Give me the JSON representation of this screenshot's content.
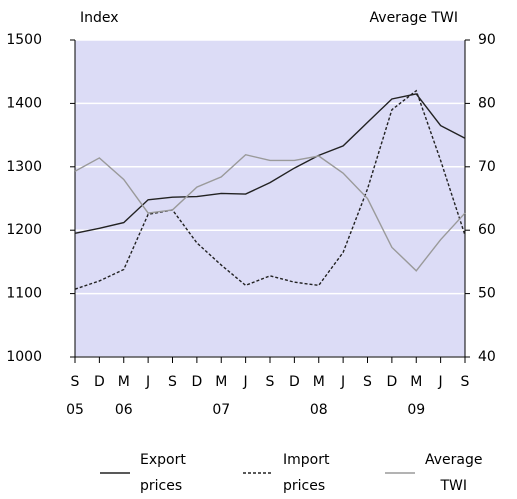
{
  "chart_data": {
    "type": "line",
    "y_label": "Index",
    "y2_label": "Average TWI",
    "categories": [
      "S",
      "D",
      "M",
      "J",
      "S",
      "D",
      "M",
      "J",
      "S",
      "D",
      "M",
      "J",
      "S",
      "D",
      "M",
      "J",
      "S"
    ],
    "category_years": [
      "05",
      null,
      "06",
      null,
      null,
      null,
      "07",
      null,
      null,
      null,
      "08",
      null,
      null,
      null,
      "09",
      null,
      null
    ],
    "series": [
      {
        "name": "Export prices",
        "color": "#222222",
        "dash": "none",
        "values": [
          1195,
          1203,
          1212,
          1248,
          1252,
          1253,
          1258,
          1257,
          1275,
          1298,
          1318,
          1333,
          1370,
          1407,
          1415,
          1365,
          1345
        ]
      },
      {
        "name": "Import prices",
        "color": "#222222",
        "dash": "3,2",
        "values": [
          1107,
          1120,
          1138,
          1225,
          1232,
          1180,
          1145,
          1113,
          1128,
          1118,
          1113,
          1165,
          1265,
          1390,
          1420,
          1310,
          1192
        ]
      },
      {
        "name": "Average TWI",
        "color": "#9a9a9a",
        "dash": "none",
        "axis": "y2",
        "values": [
          69.3,
          71.4,
          68,
          62.7,
          63.2,
          66.8,
          68.4,
          71.9,
          71,
          71,
          71.7,
          69,
          65,
          57.3,
          53.6,
          58.5,
          62.7
        ]
      }
    ],
    "ylim": [
      1000,
      1500
    ],
    "yticks": [
      1000,
      1100,
      1200,
      1300,
      1400,
      1500
    ],
    "y2lim": [
      40,
      90
    ],
    "y2ticks": [
      40,
      50,
      60,
      70,
      80,
      90
    ],
    "grid": true,
    "background": "#dcdcf6"
  }
}
